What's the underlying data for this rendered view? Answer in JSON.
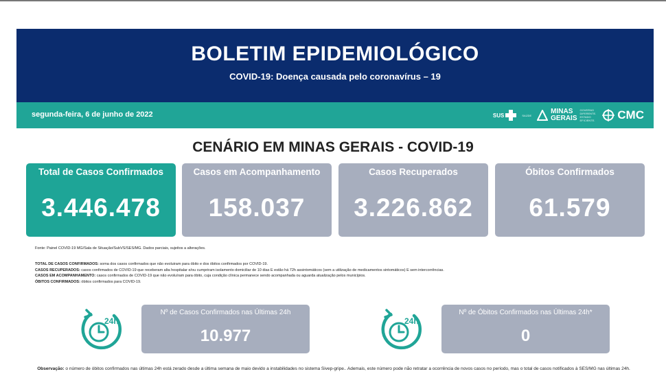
{
  "header": {
    "title": "BOLETIM EPIDEMIOLÓGICO",
    "subtitle": "COVID-19: Doença causada pelo coronavírus – 19",
    "date": "segunda-feira, 6 de junho de 2022"
  },
  "logos": {
    "sus": "SUS",
    "sus_small": "SAÚDE",
    "mg_line1": "MINAS",
    "mg_line2": "GERAIS",
    "mg_tag1": "GOVERNO",
    "mg_tag2": "DIFERENTE.",
    "mg_tag3": "ESTADO",
    "mg_tag4": "EFICIENTE.",
    "cmc": "CMC"
  },
  "section_title": "CENÁRIO EM MINAS GERAIS - COVID-19",
  "cards": [
    {
      "label": "Total de Casos Confirmados",
      "value": "3.446.478"
    },
    {
      "label": "Casos em Acompanhamento",
      "value": "158.037"
    },
    {
      "label": "Casos Recuperados",
      "value": "3.226.862"
    },
    {
      "label": "Óbitos Confirmados",
      "value": "61.579"
    }
  ],
  "source": "Fonte: Painel COVID-19 MG/Sala de Situação/SubVS/SES/MG. Dados parciais, sujeitos a alterações.",
  "definitions": [
    {
      "term": "TOTAL DE  CASOS CONFIRMADOS:",
      "text": " soma dos casos confirmados que não evoluiram para óbito e dos óbitos confirmados por COVID-19."
    },
    {
      "term": "CASOS RECUPERADOS:",
      "text": " casos confirmados de COVID-19 que receberam alta hospitalar e/ou cumpriram isolamento domiciliar de 10 dias E estão há 72h assintomáticos (sem a utilização de medicamentos sintomáticos) E sem intercorrências."
    },
    {
      "term": "CASOS EM ACOMPANHAMENTO:",
      "text": " casos confirmados de COVID-19 que não evoluíram para óbito, cuja condição clínica permanece sendo acompanhada ou aguarda atualização pelos municípios."
    },
    {
      "term": "ÓBITOS CONFIRMADOS:",
      "text": " óbitos confirmados para COVID-19."
    }
  ],
  "last24": [
    {
      "label": "Nº de Casos Confirmados nas Últimas 24h",
      "value": "10.977",
      "icon_text": "24h"
    },
    {
      "label": "Nº de Óbitos Confirmados nas Últimas 24h*",
      "value": "0",
      "icon_text": "24h"
    }
  ],
  "observation": {
    "term": "Observação:",
    "text": " o número de óbitos confirmados nas últimas 24h está zerado desde a última semana de maio devido a instabilidades no sistema Sivep-gripe.. Ademais, este número pode não retratar a ocorrência de novos casos no período, mas o total de casos notificados à SES/MG nas últimas 24h."
  },
  "colors": {
    "navy": "#0b2c6e",
    "teal": "#20a597",
    "gray_card": "#a7aebe"
  }
}
